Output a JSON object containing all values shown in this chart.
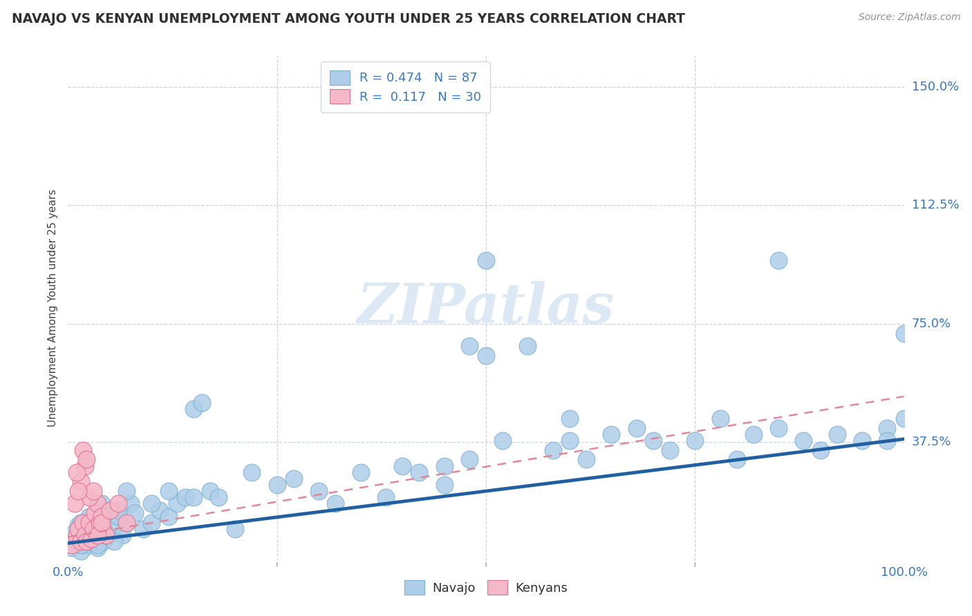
{
  "title": "NAVAJO VS KENYAN UNEMPLOYMENT AMONG YOUTH UNDER 25 YEARS CORRELATION CHART",
  "source": "Source: ZipAtlas.com",
  "ylabel": "Unemployment Among Youth under 25 years",
  "xlim": [
    0.0,
    1.0
  ],
  "ylim": [
    0.0,
    1.6
  ],
  "xticks": [
    0.0,
    0.25,
    0.5,
    0.75,
    1.0
  ],
  "xtick_labels": [
    "0.0%",
    "",
    "",
    "",
    "100.0%"
  ],
  "ytick_labels": [
    "",
    "37.5%",
    "75.0%",
    "112.5%",
    "150.0%"
  ],
  "yticks": [
    0.0,
    0.375,
    0.75,
    1.125,
    1.5
  ],
  "navajo_R": 0.474,
  "navajo_N": 87,
  "kenyan_R": 0.117,
  "kenyan_N": 30,
  "navajo_color": "#aecde8",
  "kenyan_color": "#f5b8c8",
  "navajo_edge_color": "#7aaed0",
  "kenyan_edge_color": "#e07090",
  "navajo_line_color": "#2060a0",
  "kenyan_line_color": "#e08898",
  "background_color": "#ffffff",
  "grid_color": "#c8d4e4",
  "watermark_text": "ZIPatlas",
  "watermark_color": "#dce8f4",
  "navajo_x": [
    0.005,
    0.01,
    0.015,
    0.02,
    0.025,
    0.03,
    0.035,
    0.04,
    0.008,
    0.012,
    0.018,
    0.022,
    0.028,
    0.032,
    0.038,
    0.042,
    0.048,
    0.055,
    0.06,
    0.065,
    0.07,
    0.075,
    0.08,
    0.09,
    0.1,
    0.11,
    0.12,
    0.13,
    0.14,
    0.15,
    0.16,
    0.17,
    0.18,
    0.2,
    0.22,
    0.25,
    0.27,
    0.3,
    0.32,
    0.35,
    0.38,
    0.4,
    0.42,
    0.45,
    0.48,
    0.5,
    0.52,
    0.55,
    0.58,
    0.6,
    0.62,
    0.65,
    0.68,
    0.7,
    0.72,
    0.75,
    0.78,
    0.8,
    0.82,
    0.85,
    0.88,
    0.9,
    0.92,
    0.95,
    0.98,
    1.0,
    0.015,
    0.025,
    0.035,
    0.045,
    0.055,
    0.015,
    0.025,
    0.05,
    0.48,
    0.5,
    0.85,
    0.15,
    0.12,
    0.1,
    0.06,
    0.07,
    0.04,
    0.45,
    0.6,
    0.98,
    1.0
  ],
  "navajo_y": [
    0.04,
    0.06,
    0.03,
    0.08,
    0.05,
    0.07,
    0.04,
    0.06,
    0.09,
    0.11,
    0.08,
    0.1,
    0.07,
    0.09,
    0.12,
    0.06,
    0.08,
    0.1,
    0.14,
    0.08,
    0.12,
    0.18,
    0.15,
    0.1,
    0.12,
    0.16,
    0.14,
    0.18,
    0.2,
    0.48,
    0.5,
    0.22,
    0.2,
    0.1,
    0.28,
    0.24,
    0.26,
    0.22,
    0.18,
    0.28,
    0.2,
    0.3,
    0.28,
    0.24,
    0.32,
    0.95,
    0.38,
    0.68,
    0.35,
    0.38,
    0.32,
    0.4,
    0.42,
    0.38,
    0.35,
    0.38,
    0.45,
    0.32,
    0.4,
    0.42,
    0.38,
    0.35,
    0.4,
    0.38,
    0.42,
    0.45,
    0.05,
    0.07,
    0.05,
    0.08,
    0.06,
    0.12,
    0.14,
    0.16,
    0.68,
    0.65,
    0.95,
    0.2,
    0.22,
    0.18,
    0.16,
    0.22,
    0.18,
    0.3,
    0.45,
    0.38,
    0.72
  ],
  "kenyan_x": [
    0.005,
    0.01,
    0.012,
    0.015,
    0.018,
    0.02,
    0.022,
    0.025,
    0.028,
    0.03,
    0.032,
    0.035,
    0.038,
    0.04,
    0.042,
    0.045,
    0.015,
    0.02,
    0.025,
    0.01,
    0.03,
    0.018,
    0.022,
    0.035,
    0.04,
    0.008,
    0.012,
    0.05,
    0.06,
    0.07
  ],
  "kenyan_y": [
    0.05,
    0.08,
    0.1,
    0.06,
    0.12,
    0.08,
    0.06,
    0.12,
    0.07,
    0.1,
    0.15,
    0.18,
    0.12,
    0.14,
    0.1,
    0.08,
    0.25,
    0.3,
    0.2,
    0.28,
    0.22,
    0.35,
    0.32,
    0.08,
    0.12,
    0.18,
    0.22,
    0.16,
    0.18,
    0.12
  ],
  "navajo_line_x0": 0.0,
  "navajo_line_y0": 0.055,
  "navajo_line_x1": 1.0,
  "navajo_line_y1": 0.385,
  "kenyan_line_x0": 0.0,
  "kenyan_line_y0": 0.075,
  "kenyan_line_x1": 1.0,
  "kenyan_line_y1": 0.52
}
